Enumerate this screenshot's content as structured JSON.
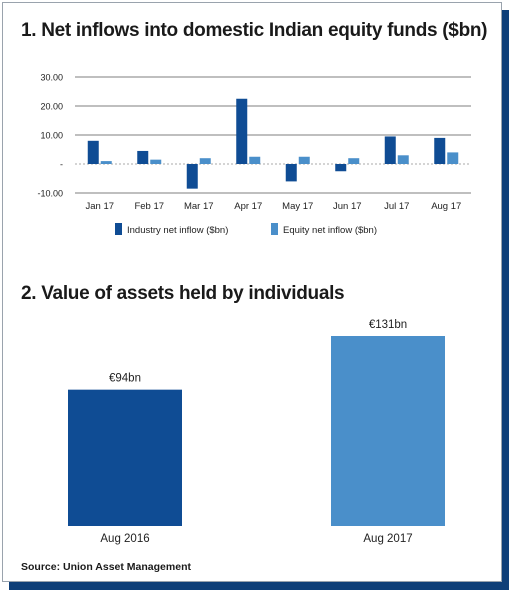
{
  "chart1": {
    "title": "1. Net inflows into domestic Indian equity funds ($bn)",
    "chart_data": {
      "type": "bar",
      "categories": [
        "Jan 17",
        "Feb 17",
        "Mar 17",
        "Apr 17",
        "May 17",
        "Jun 17",
        "Jul 17",
        "Aug 17"
      ],
      "series": [
        {
          "name": "Industry net inflow ($bn)",
          "color": "#0f4c94",
          "values": [
            8.0,
            4.5,
            -8.5,
            22.5,
            -6.0,
            -2.5,
            9.5,
            9.0
          ]
        },
        {
          "name": "Equity net inflow ($bn)",
          "color": "#4a8fca",
          "values": [
            1.0,
            1.5,
            2.0,
            2.5,
            2.5,
            2.0,
            3.0,
            4.0
          ]
        }
      ],
      "yticks": [
        "30.00",
        "20.00",
        "10.00",
        "-",
        "-10.00"
      ],
      "ytick_values": [
        30,
        20,
        10,
        0,
        -10
      ],
      "ylim": [
        -10,
        30
      ],
      "legend_position": "bottom",
      "grid": true
    }
  },
  "chart2": {
    "title": "2. Value of assets held by individuals",
    "chart_data": {
      "type": "bar",
      "categories": [
        "Aug 2016",
        "Aug 2017"
      ],
      "values": [
        94,
        131
      ],
      "value_labels": [
        "€94bn",
        "€131bn"
      ],
      "colors": [
        "#0f4c94",
        "#4a8fca"
      ],
      "unit": "€bn"
    }
  },
  "source": "Source: Union Asset Management"
}
